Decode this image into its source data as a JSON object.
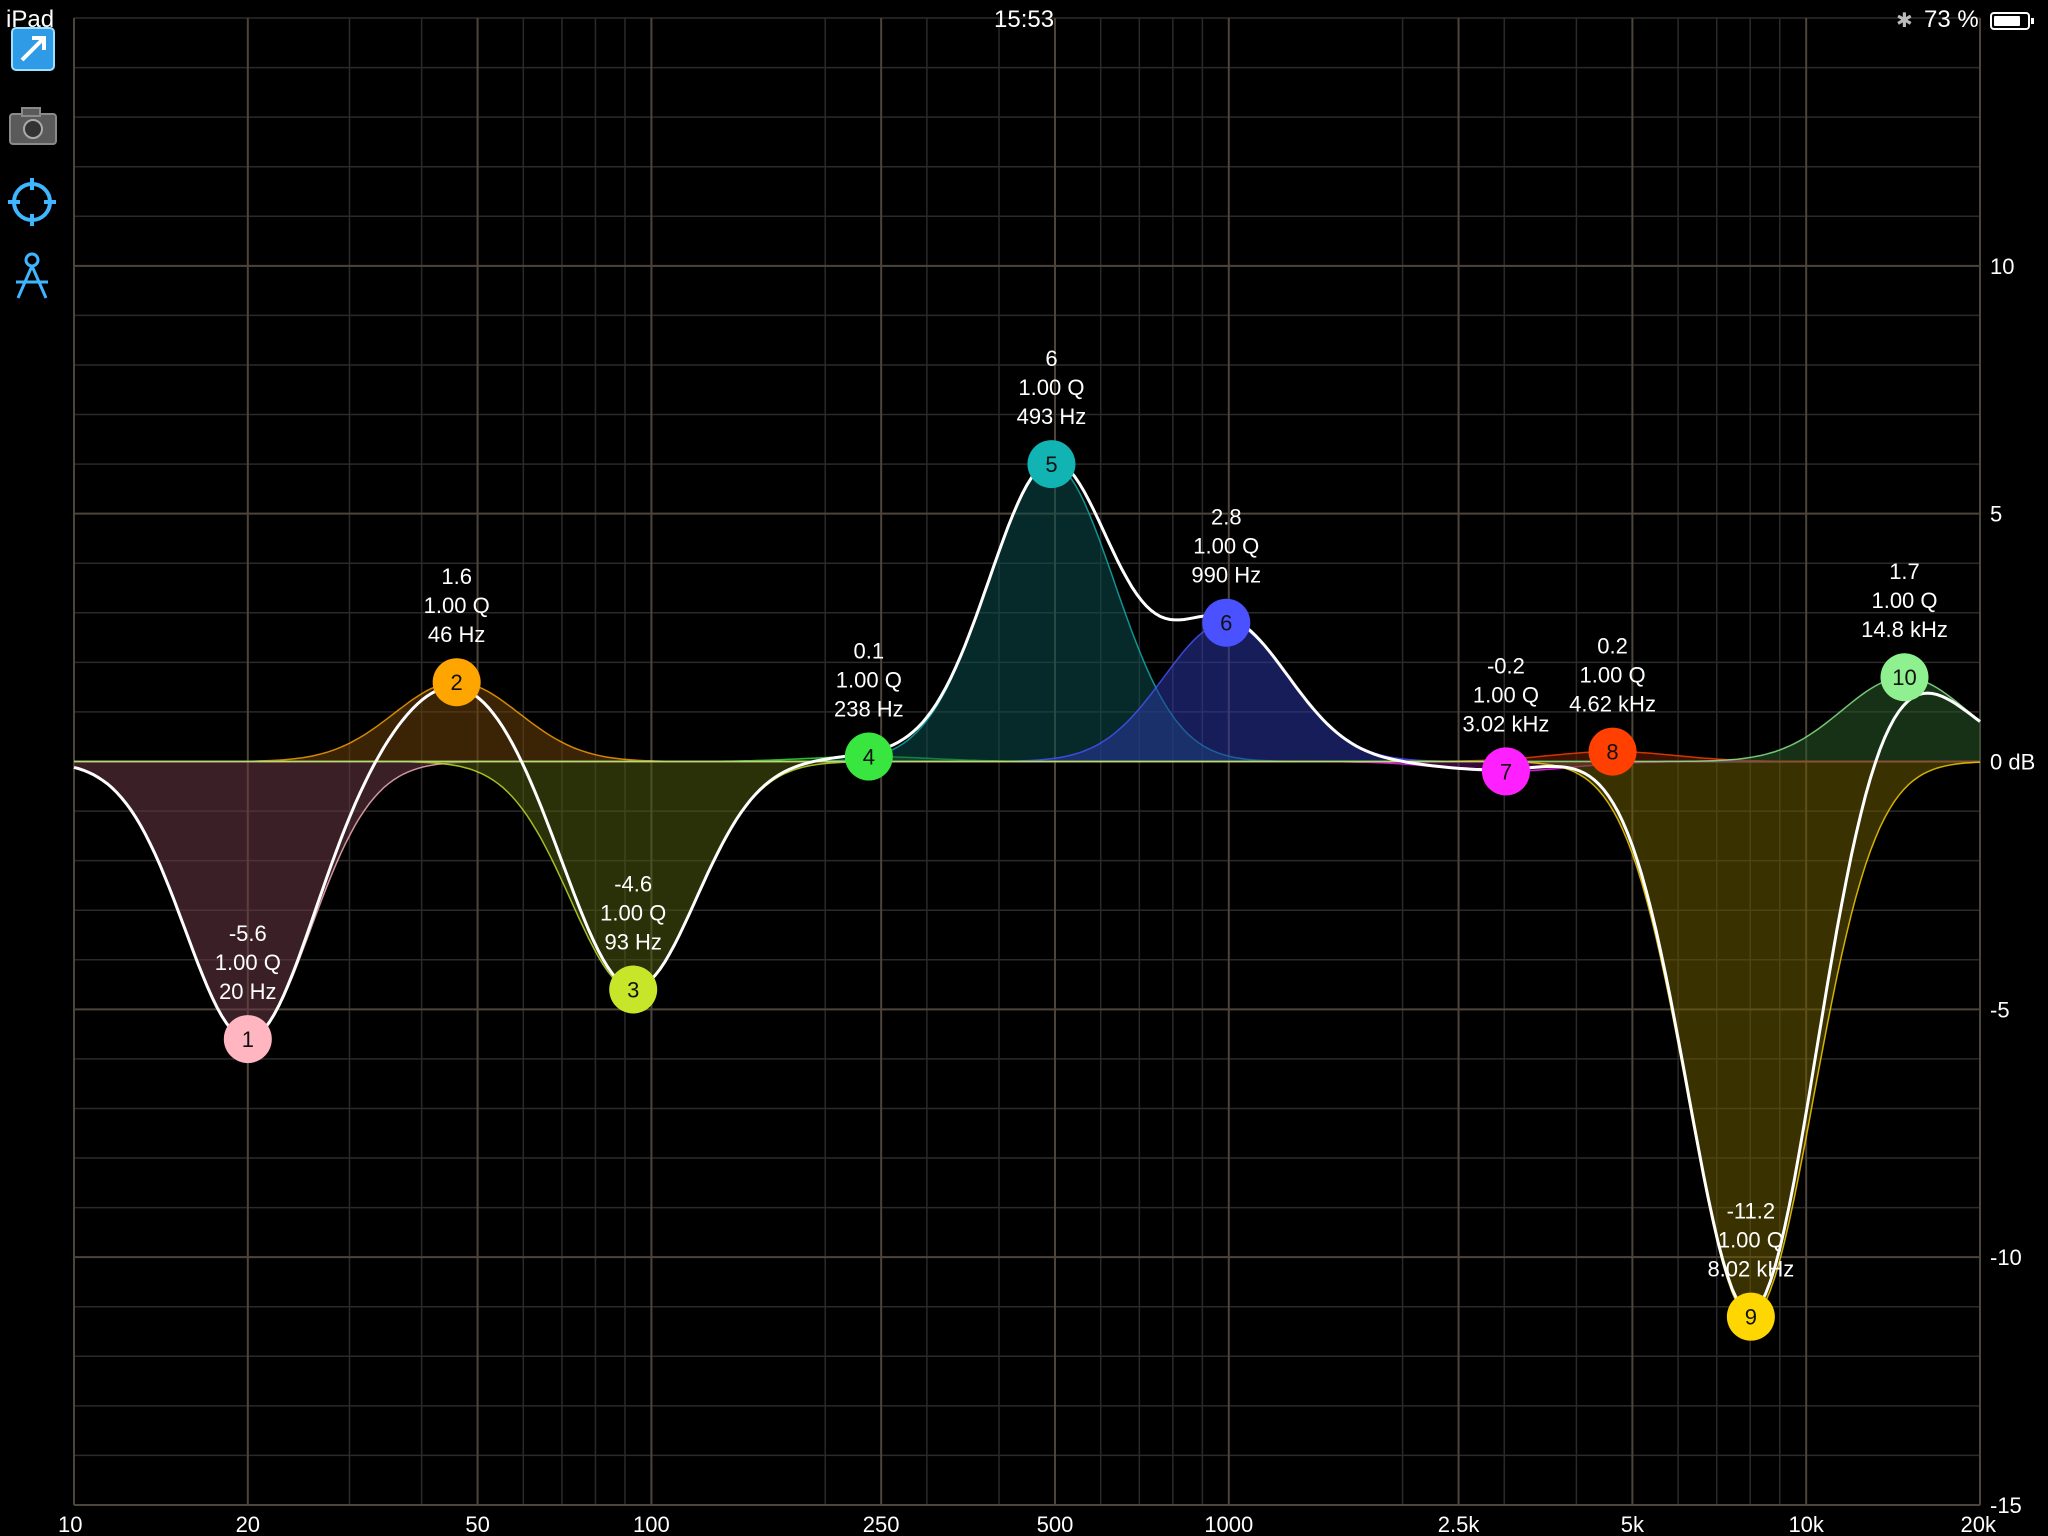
{
  "status_bar": {
    "device": "iPad",
    "time": "15:53",
    "battery_text": "73 %"
  },
  "toolbar": {
    "items": [
      {
        "name": "expand-icon",
        "color": "#3fb6ff"
      },
      {
        "name": "camera-icon",
        "color": "#8a8a8a"
      },
      {
        "name": "crosshair-icon",
        "color": "#3fb6ff"
      },
      {
        "name": "compass-tool-icon",
        "color": "#3fb6ff"
      }
    ]
  },
  "chart_data": {
    "type": "line",
    "x_scale": "log",
    "xlim": [
      10,
      20000
    ],
    "ylim": [
      -15,
      15
    ],
    "x_ticks": [
      {
        "value": 10,
        "label": "10"
      },
      {
        "value": 20,
        "label": "20"
      },
      {
        "value": 50,
        "label": "50"
      },
      {
        "value": 100,
        "label": "100"
      },
      {
        "value": 250,
        "label": "250"
      },
      {
        "value": 500,
        "label": "500"
      },
      {
        "value": 1000,
        "label": "1000"
      },
      {
        "value": 2500,
        "label": "2.5k"
      },
      {
        "value": 5000,
        "label": "5k"
      },
      {
        "value": 10000,
        "label": "10k"
      },
      {
        "value": 20000,
        "label": "20k"
      }
    ],
    "y_ticks": [
      {
        "value": 10,
        "label": "10"
      },
      {
        "value": 5,
        "label": "5"
      },
      {
        "value": 0,
        "label": "0 dB"
      },
      {
        "value": -5,
        "label": "-5"
      },
      {
        "value": -10,
        "label": "-10"
      },
      {
        "value": -15,
        "label": "-15"
      }
    ],
    "grid": true,
    "bands": [
      {
        "id": "1",
        "gain": -5.6,
        "freq": 20,
        "gain_label": "-5.6",
        "q_label": "1.00 Q",
        "freq_label": "20 Hz",
        "color": "#ffb6c1",
        "fill": "#6a3a45"
      },
      {
        "id": "2",
        "gain": 1.6,
        "freq": 46,
        "gain_label": "1.6",
        "q_label": "1.00 Q",
        "freq_label": "46 Hz",
        "color": "#ffa500",
        "fill": "#6b3f0a"
      },
      {
        "id": "3",
        "gain": -4.6,
        "freq": 93,
        "gain_label": "-4.6",
        "q_label": "1.00 Q",
        "freq_label": "93 Hz",
        "color": "#c7e62a",
        "fill": "#4d5a10"
      },
      {
        "id": "4",
        "gain": 0.1,
        "freq": 238,
        "gain_label": "0.1",
        "q_label": "1.00 Q",
        "freq_label": "238 Hz",
        "color": "#39e63f",
        "fill": "#175c1a"
      },
      {
        "id": "5",
        "gain": 6,
        "freq": 493,
        "gain_label": "6",
        "q_label": "1.00 Q",
        "freq_label": "493 Hz",
        "color": "#11b3b3",
        "fill": "#0b4d4d"
      },
      {
        "id": "6",
        "gain": 2.8,
        "freq": 990,
        "gain_label": "2.8",
        "q_label": "1.00 Q",
        "freq_label": "990 Hz",
        "color": "#4a52ff",
        "fill": "#2a34a0"
      },
      {
        "id": "7",
        "gain": -0.2,
        "freq": 3020,
        "gain_label": "-0.2",
        "q_label": "1.00 Q",
        "freq_label": "3.02 kHz",
        "color": "#ff20ff",
        "fill": "#6a106a"
      },
      {
        "id": "8",
        "gain": 0.2,
        "freq": 4620,
        "gain_label": "0.2",
        "q_label": "1.00 Q",
        "freq_label": "4.62 kHz",
        "color": "#ff4000",
        "fill": "#6b2000"
      },
      {
        "id": "9",
        "gain": -11.2,
        "freq": 8020,
        "gain_label": "-11.2",
        "q_label": "1.00 Q",
        "freq_label": "8.02 kHz",
        "color": "#ffd700",
        "fill": "#6a5900"
      },
      {
        "id": "10",
        "gain": 1.7,
        "freq": 14800,
        "gain_label": "1.7",
        "q_label": "1.00 Q",
        "freq_label": "14.8 kHz",
        "color": "#8ef08e",
        "fill": "#2a5a2a"
      }
    ],
    "sum_curve_color": "#ffffff"
  }
}
